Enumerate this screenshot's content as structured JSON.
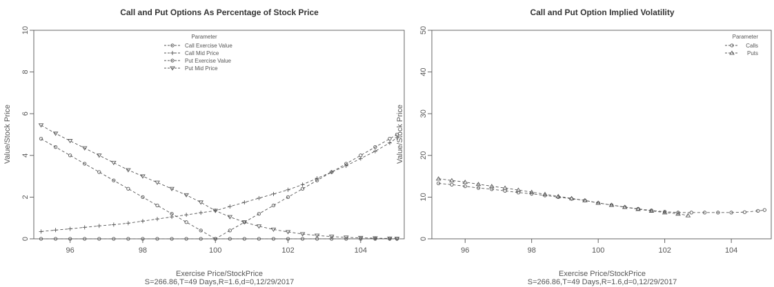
{
  "chart_data": [
    {
      "type": "line",
      "title": "Call and Put Options As Percentage of Stock Price",
      "xlabel": "Exercise Price/StockPrice",
      "subtitle": "S=266.86,T=49 Days,R=1.6,d=0,12/29/2017",
      "ylabel": "Value/Stock Price",
      "xlim": [
        95.0,
        105.2
      ],
      "ylim": [
        0,
        10
      ],
      "xticks": [
        "96",
        "98",
        "100",
        "102",
        "104"
      ],
      "yticks": [
        "0",
        "2",
        "4",
        "6",
        "8",
        "10"
      ],
      "legend_title": "Parameter",
      "legend_position": "top-center",
      "x": [
        95.2,
        95.6,
        96.0,
        96.4,
        96.8,
        97.2,
        97.6,
        98.0,
        98.4,
        98.8,
        99.2,
        99.6,
        100.0,
        100.4,
        100.8,
        101.2,
        101.6,
        102.0,
        102.4,
        102.8,
        103.2,
        103.6,
        104.0,
        104.4,
        104.8,
        105.0
      ],
      "series": [
        {
          "name": "Call Exercise Value",
          "marker": "circle",
          "values": [
            0,
            0,
            0,
            0,
            0,
            0,
            0,
            0,
            0,
            0,
            0,
            0,
            0,
            0.4,
            0.8,
            1.2,
            1.6,
            2.0,
            2.4,
            2.8,
            3.2,
            3.6,
            4.0,
            4.4,
            4.8,
            5.0
          ]
        },
        {
          "name": "Call Mid Price",
          "marker": "plus",
          "values": [
            0.35,
            0.42,
            0.48,
            0.55,
            0.62,
            0.68,
            0.75,
            0.85,
            0.95,
            1.05,
            1.15,
            1.25,
            1.35,
            1.55,
            1.75,
            1.95,
            2.15,
            2.35,
            2.6,
            2.9,
            3.2,
            3.5,
            3.85,
            4.2,
            4.6,
            4.85
          ]
        },
        {
          "name": "Put Exercise Value",
          "marker": "circle-open",
          "values": [
            4.8,
            4.4,
            4.0,
            3.6,
            3.2,
            2.8,
            2.4,
            2.0,
            1.6,
            1.2,
            0.8,
            0.4,
            0,
            0,
            0,
            0,
            0,
            0,
            0,
            0,
            0,
            0,
            0,
            0,
            0,
            0
          ]
        },
        {
          "name": "Put Mid Price",
          "marker": "triangle-down",
          "values": [
            5.45,
            5.05,
            4.7,
            4.35,
            4.0,
            3.65,
            3.3,
            3.0,
            2.7,
            2.4,
            2.1,
            1.75,
            1.35,
            1.05,
            0.8,
            0.6,
            0.45,
            0.33,
            0.23,
            0.16,
            0.11,
            0.07,
            0.05,
            0.03,
            0.02,
            0.01
          ]
        }
      ]
    },
    {
      "type": "line",
      "title": "Call and Put Option Implied Volatility",
      "xlabel": "Exercise Price/StockPrice",
      "subtitle": "S=266.86,T=49 Days,R=1.6,d=0,12/29/2017",
      "ylabel": "Value/Stock Price",
      "xlim": [
        95.0,
        105.2
      ],
      "ylim": [
        0,
        50
      ],
      "xticks": [
        "96",
        "98",
        "100",
        "102",
        "104"
      ],
      "yticks": [
        "0",
        "10",
        "20",
        "30",
        "40",
        "50"
      ],
      "legend_title": "Parameter",
      "legend_position": "top-right",
      "series": [
        {
          "name": "Calls",
          "marker": "circle-open",
          "x": [
            95.2,
            95.6,
            96.0,
            96.4,
            96.8,
            97.2,
            97.6,
            98.0,
            98.4,
            98.8,
            99.2,
            99.6,
            100.0,
            100.4,
            100.8,
            101.2,
            101.6,
            102.0,
            102.4,
            102.8,
            103.2,
            103.6,
            104.0,
            104.4,
            104.8,
            105.0
          ],
          "values": [
            13.3,
            13.0,
            12.6,
            12.2,
            11.9,
            11.5,
            11.1,
            10.8,
            10.4,
            10.0,
            9.6,
            9.2,
            8.6,
            8.1,
            7.6,
            7.2,
            6.8,
            6.5,
            6.3,
            6.3,
            6.3,
            6.3,
            6.3,
            6.4,
            6.7,
            6.9
          ]
        },
        {
          "name": "Puts",
          "marker": "triangle",
          "x": [
            95.2,
            95.6,
            96.0,
            96.4,
            96.8,
            97.2,
            97.6,
            98.0,
            98.4,
            98.8,
            99.2,
            99.6,
            100.0,
            100.4,
            100.8,
            101.2,
            101.6,
            102.0,
            102.4,
            102.7
          ],
          "values": [
            14.4,
            14.0,
            13.6,
            13.1,
            12.6,
            12.2,
            11.7,
            11.2,
            10.7,
            10.2,
            9.7,
            9.2,
            8.6,
            8.1,
            7.6,
            7.1,
            6.7,
            6.3,
            6.0,
            5.6
          ]
        }
      ]
    }
  ]
}
